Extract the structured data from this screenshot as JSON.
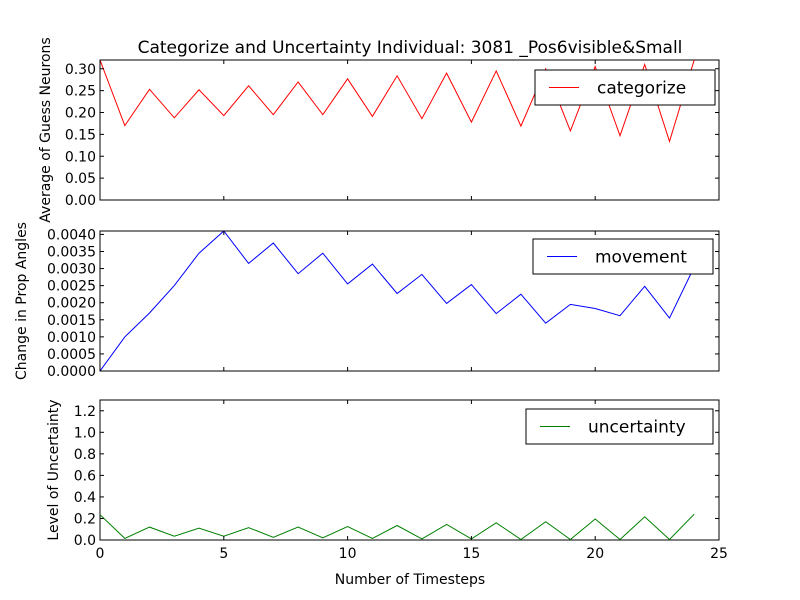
{
  "figure": {
    "title": "Categorize and Uncertainty Individual: 3081 _Pos6visible&Small",
    "xlabel": "Number of Timesteps"
  },
  "colors": {
    "categorize": "#ff0000",
    "movement": "#0000ff",
    "uncertainty": "#008000",
    "axes": "#000000",
    "background": "#ffffff"
  },
  "chart_data": [
    {
      "type": "line",
      "title": "Categorize and Uncertainty Individual: 3081 _Pos6visible&Small",
      "xlabel": "",
      "ylabel": "Average of Guess Neurons",
      "xlim": [
        0,
        25
      ],
      "ylim": [
        0.0,
        0.32
      ],
      "xticks": [
        0,
        5,
        10,
        15,
        20,
        25
      ],
      "yticks": [
        "0.00",
        "0.05",
        "0.10",
        "0.15",
        "0.20",
        "0.25",
        "0.30"
      ],
      "xticks_labeled": false,
      "legend": "top-right",
      "grid": false,
      "series": [
        {
          "name": "categorize",
          "x": [
            0,
            1,
            2,
            3,
            4,
            5,
            6,
            7,
            8,
            9,
            10,
            11,
            12,
            13,
            14,
            15,
            16,
            17,
            18,
            19,
            20,
            21,
            22,
            23,
            24
          ],
          "values": [
            0.32,
            0.17,
            0.253,
            0.188,
            0.252,
            0.193,
            0.261,
            0.195,
            0.27,
            0.195,
            0.277,
            0.191,
            0.284,
            0.186,
            0.29,
            0.178,
            0.295,
            0.169,
            0.3,
            0.158,
            0.305,
            0.147,
            0.31,
            0.134,
            0.32
          ]
        }
      ]
    },
    {
      "type": "line",
      "xlabel": "",
      "ylabel": "Change in Prop Angles",
      "xlim": [
        0,
        25
      ],
      "ylim": [
        0.0,
        0.0041
      ],
      "xticks": [
        0,
        5,
        10,
        15,
        20,
        25
      ],
      "yticks": [
        "0.0000",
        "0.0005",
        "0.0010",
        "0.0015",
        "0.0020",
        "0.0025",
        "0.0030",
        "0.0035",
        "0.0040"
      ],
      "xticks_labeled": false,
      "legend": "top-right",
      "grid": false,
      "series": [
        {
          "name": "movement",
          "x": [
            0,
            1,
            2,
            3,
            4,
            5,
            6,
            7,
            8,
            9,
            10,
            11,
            12,
            13,
            14,
            15,
            16,
            17,
            18,
            19,
            20,
            21,
            22,
            23,
            24
          ],
          "values": [
            0.0,
            0.001,
            0.0017,
            0.0025,
            0.00345,
            0.0041,
            0.00315,
            0.00375,
            0.00285,
            0.00345,
            0.00255,
            0.00313,
            0.00227,
            0.00283,
            0.00198,
            0.00253,
            0.00168,
            0.00225,
            0.0014,
            0.00195,
            0.00183,
            0.00162,
            0.00248,
            0.00155,
            0.00305
          ]
        }
      ]
    },
    {
      "type": "line",
      "xlabel": "Number of Timesteps",
      "ylabel": "Level of Uncertainty",
      "xlim": [
        0,
        25
      ],
      "ylim": [
        0.0,
        1.3
      ],
      "xticks": [
        0,
        5,
        10,
        15,
        20,
        25
      ],
      "yticks": [
        "0.0",
        "0.2",
        "0.4",
        "0.6",
        "0.8",
        "1.0",
        "1.2"
      ],
      "xticks_labeled": true,
      "legend": "top-right",
      "grid": false,
      "series": [
        {
          "name": "uncertainty",
          "x": [
            0,
            1,
            2,
            3,
            4,
            5,
            6,
            7,
            8,
            9,
            10,
            11,
            12,
            13,
            14,
            15,
            16,
            17,
            18,
            19,
            20,
            21,
            22,
            23,
            24
          ],
          "values": [
            0.235,
            0.015,
            0.12,
            0.035,
            0.11,
            0.035,
            0.115,
            0.025,
            0.12,
            0.02,
            0.125,
            0.015,
            0.135,
            0.01,
            0.145,
            0.01,
            0.16,
            0.005,
            0.17,
            0.005,
            0.195,
            0.005,
            0.215,
            0.005,
            0.24
          ]
        }
      ]
    }
  ]
}
